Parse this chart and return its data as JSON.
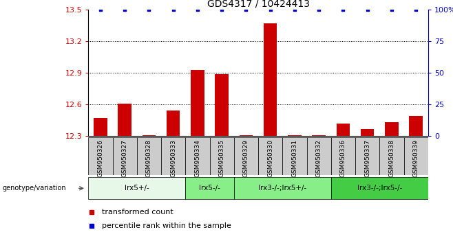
{
  "title": "GDS4317 / 10424413",
  "samples": [
    "GSM950326",
    "GSM950327",
    "GSM950328",
    "GSM950333",
    "GSM950334",
    "GSM950335",
    "GSM950329",
    "GSM950330",
    "GSM950331",
    "GSM950332",
    "GSM950336",
    "GSM950337",
    "GSM950338",
    "GSM950339"
  ],
  "red_values": [
    12.47,
    12.61,
    12.31,
    12.54,
    12.93,
    12.89,
    12.31,
    13.37,
    12.31,
    12.31,
    12.42,
    12.37,
    12.43,
    12.49
  ],
  "blue_values": [
    100,
    100,
    100,
    100,
    100,
    100,
    100,
    100,
    100,
    100,
    100,
    100,
    100,
    100
  ],
  "ylim_left": [
    12.3,
    13.5
  ],
  "ylim_right": [
    0,
    100
  ],
  "yticks_left": [
    12.3,
    12.6,
    12.9,
    13.2,
    13.5
  ],
  "yticks_right": [
    0,
    25,
    50,
    75,
    100
  ],
  "ytick_right_labels": [
    "0",
    "25",
    "50",
    "75",
    "100%"
  ],
  "hlines": [
    12.6,
    12.9,
    13.2
  ],
  "groups_def": [
    {
      "start": 0,
      "end": 4,
      "label": "lrx5+/-",
      "color": "#e8f8e8"
    },
    {
      "start": 4,
      "end": 6,
      "label": "lrx5-/-",
      "color": "#88ee88"
    },
    {
      "start": 6,
      "end": 10,
      "label": "lrx3-/-;lrx5+/-",
      "color": "#88ee88"
    },
    {
      "start": 10,
      "end": 14,
      "label": "lrx3-/-;lrx5-/-",
      "color": "#44cc44"
    }
  ],
  "genotype_label": "genotype/variation",
  "legend_red": "transformed count",
  "legend_blue": "percentile rank within the sample",
  "bar_color": "#cc0000",
  "dot_color": "#0000cc",
  "bar_width": 0.55,
  "base_value": 12.3,
  "background_color": "#ffffff",
  "tick_area_color": "#cccccc",
  "title_fontsize": 10,
  "axis_fontsize": 8,
  "label_fontsize": 6.5,
  "group_fontsize": 7.5,
  "legend_fontsize": 8
}
